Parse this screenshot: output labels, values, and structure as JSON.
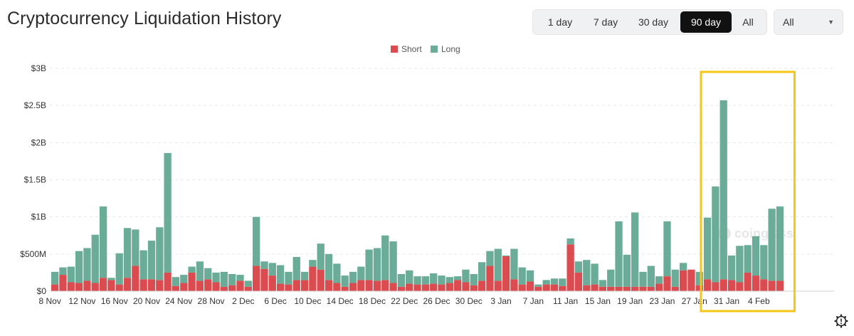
{
  "header": {
    "title": "Cryptocurrency Liquidation History",
    "ranges": [
      "1 day",
      "7 day",
      "30 day",
      "90 day",
      "All"
    ],
    "active_range": "90 day",
    "select_value": "All"
  },
  "colors": {
    "short": "#db4c50",
    "long": "#6aac97",
    "highlight": "#f5c518",
    "grid": "#e8e8e8"
  },
  "watermark": "coinglass",
  "chart_data": {
    "type": "bar",
    "stacked": true,
    "title": "Cryptocurrency Liquidation History",
    "xlabel": "",
    "ylabel": "",
    "ylim": [
      0,
      3000
    ],
    "y_unit": "M USD",
    "y_ticks": [
      0,
      500,
      1000,
      1500,
      2000,
      2500,
      3000
    ],
    "y_tick_labels": [
      "$0",
      "$500M",
      "$1B",
      "$1.5B",
      "$2B",
      "$2.5B",
      "$3B"
    ],
    "x_tick_labels": [
      "8 Nov",
      "12 Nov",
      "16 Nov",
      "20 Nov",
      "24 Nov",
      "28 Nov",
      "2 Dec",
      "6 Dec",
      "10 Dec",
      "14 Dec",
      "18 Dec",
      "22 Dec",
      "26 Dec",
      "30 Dec",
      "3 Jan",
      "7 Jan",
      "11 Jan",
      "15 Jan",
      "19 Jan",
      "23 Jan",
      "27 Jan",
      "31 Jan",
      "4 Feb"
    ],
    "legend": [
      "Short",
      "Long"
    ],
    "legend_position": "top-center",
    "annotation": "highlight box around 27 Jan – 6 Feb",
    "highlight_range": [
      81,
      91
    ],
    "series": [
      {
        "name": "Short",
        "values": [
          90,
          220,
          120,
          110,
          140,
          110,
          180,
          150,
          90,
          180,
          340,
          160,
          160,
          150,
          250,
          70,
          110,
          250,
          140,
          160,
          120,
          60,
          80,
          140,
          60,
          340,
          300,
          210,
          100,
          90,
          150,
          150,
          330,
          290,
          150,
          110,
          60,
          110,
          150,
          150,
          140,
          150,
          110,
          60,
          100,
          90,
          90,
          100,
          90,
          110,
          150,
          120,
          80,
          140,
          340,
          140,
          470,
          160,
          90,
          130,
          60,
          90,
          90,
          70,
          630,
          250,
          80,
          90,
          60,
          60,
          60,
          60,
          60,
          60,
          60,
          100,
          200,
          60,
          280,
          290,
          80,
          160,
          120,
          160,
          150,
          120,
          250,
          210,
          160,
          140,
          140
        ]
      },
      {
        "name": "Long",
        "values": [
          170,
          100,
          210,
          430,
          440,
          650,
          960,
          30,
          420,
          670,
          490,
          390,
          520,
          710,
          1610,
          120,
          110,
          80,
          260,
          150,
          130,
          200,
          150,
          80,
          80,
          660,
          100,
          170,
          250,
          170,
          310,
          110,
          90,
          350,
          350,
          260,
          150,
          150,
          180,
          410,
          440,
          600,
          560,
          170,
          180,
          110,
          110,
          140,
          120,
          80,
          50,
          170,
          150,
          250,
          200,
          430,
          10,
          410,
          230,
          150,
          30,
          60,
          80,
          100,
          80,
          150,
          340,
          280,
          90,
          230,
          880,
          430,
          1000,
          200,
          280,
          100,
          740,
          230,
          100,
          0,
          180,
          830,
          1290,
          2410,
          330,
          490,
          370,
          530,
          460,
          970,
          1000
        ]
      }
    ]
  }
}
